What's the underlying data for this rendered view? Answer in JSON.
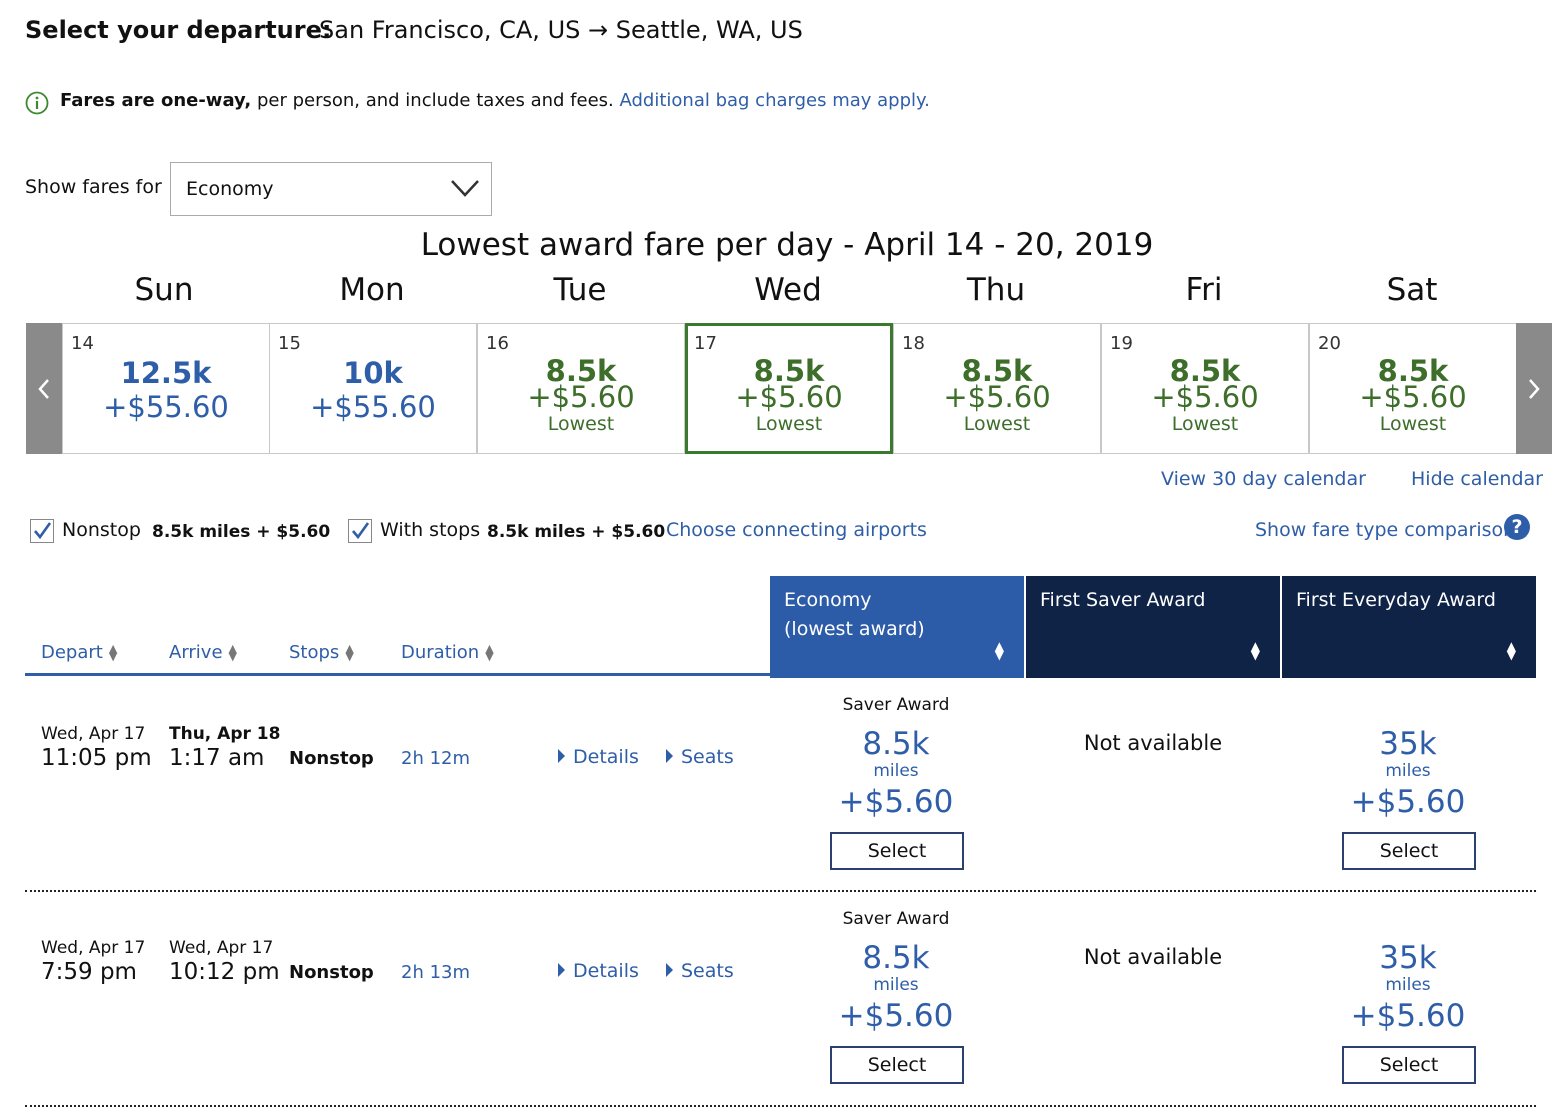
{
  "header": {
    "label": "Select your departure:",
    "route": "San Francisco, CA, US → Seattle, WA, US"
  },
  "info": {
    "bold": "Fares are one-way,",
    "text": " per person, and include taxes and fees. ",
    "link": "Additional bag charges may apply."
  },
  "fares_for": {
    "label": "Show fares for",
    "value": "Economy"
  },
  "calendar": {
    "title": "Lowest award fare per day - April 14 - 20, 2019",
    "days": [
      {
        "name": "Sun",
        "date": "14",
        "miles": "12.5k",
        "fee": "+$55.60",
        "note": ""
      },
      {
        "name": "Mon",
        "date": "15",
        "miles": "10k",
        "fee": "+$55.60",
        "note": ""
      },
      {
        "name": "Tue",
        "date": "16",
        "miles": "8.5k",
        "fee": "+$5.60",
        "note": "Lowest"
      },
      {
        "name": "Wed",
        "date": "17",
        "miles": "8.5k",
        "fee": "+$5.60",
        "note": "Lowest"
      },
      {
        "name": "Thu",
        "date": "18",
        "miles": "8.5k",
        "fee": "+$5.60",
        "note": "Lowest"
      },
      {
        "name": "Fri",
        "date": "19",
        "miles": "8.5k",
        "fee": "+$5.60",
        "note": "Lowest"
      },
      {
        "name": "Sat",
        "date": "20",
        "miles": "8.5k",
        "fee": "+$5.60",
        "note": "Lowest"
      }
    ],
    "view30": "View 30 day calendar",
    "hide": "Hide calendar"
  },
  "filters": {
    "nonstop_label": "Nonstop",
    "nonstop_value": "8.5k miles + $5.60",
    "stops_label": "With stops",
    "stops_value": "8.5k miles + $5.60",
    "connecting": "Choose connecting airports",
    "comparison": "Show fare type comparison",
    "help": "?"
  },
  "columns": {
    "depart": "Depart",
    "arrive": "Arrive",
    "stops": "Stops",
    "duration": "Duration",
    "economy_line1": "Economy",
    "economy_line2": "(lowest award)",
    "first_saver": "First Saver Award",
    "first_everyday": "First Everyday Award"
  },
  "flights": [
    {
      "depart_day": "Wed, Apr 17",
      "depart_time": "11:05 pm",
      "arrive_day": "Thu, Apr 18",
      "arrive_time": "1:17 am",
      "stops": "Nonstop",
      "duration": "2h 12m",
      "details": "Details",
      "seats": "Seats",
      "economy": {
        "type": "Saver Award",
        "miles": "8.5k",
        "miles_label": "miles",
        "fee": "+$5.60",
        "button": "Select"
      },
      "first_saver": "Not available",
      "first_everyday": {
        "miles": "35k",
        "miles_label": "miles",
        "fee": "+$5.60",
        "button": "Select"
      }
    },
    {
      "depart_day": "Wed, Apr 17",
      "depart_time": "7:59 pm",
      "arrive_day": "Wed, Apr 17",
      "arrive_time": "10:12 pm",
      "stops": "Nonstop",
      "duration": "2h 13m",
      "details": "Details",
      "seats": "Seats",
      "economy": {
        "type": "Saver Award",
        "miles": "8.5k",
        "miles_label": "miles",
        "fee": "+$5.60",
        "button": "Select"
      },
      "first_saver": "Not available",
      "first_everyday": {
        "miles": "35k",
        "miles_label": "miles",
        "fee": "+$5.60",
        "button": "Select"
      }
    }
  ],
  "colors": {
    "link_blue": "#2f5ea8",
    "economy_header": "#2c5ba8",
    "first_header": "#0f2347",
    "lowest_green": "#3d6e2a",
    "selected_border": "#3b7a2e"
  }
}
